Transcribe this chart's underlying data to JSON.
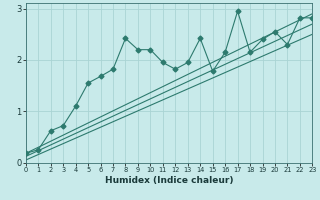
{
  "xlabel": "Humidex (Indice chaleur)",
  "ylabel": "",
  "background_color": "#c8eaea",
  "line_color": "#2d7a6e",
  "grid_color": "#aad4d4",
  "x_data": [
    0,
    1,
    2,
    3,
    4,
    5,
    6,
    7,
    8,
    9,
    10,
    11,
    12,
    13,
    14,
    15,
    16,
    17,
    18,
    19,
    20,
    21,
    22,
    23
  ],
  "y_data": [
    0.18,
    0.25,
    0.62,
    0.72,
    1.1,
    1.55,
    1.68,
    1.82,
    2.42,
    2.2,
    2.2,
    1.95,
    1.82,
    1.95,
    2.42,
    1.78,
    2.15,
    2.95,
    2.15,
    2.4,
    2.55,
    2.3,
    2.82,
    2.82
  ],
  "reg_lines": [
    {
      "x": [
        0,
        23
      ],
      "y": [
        0.18,
        2.9
      ]
    },
    {
      "x": [
        0,
        23
      ],
      "y": [
        0.12,
        2.7
      ]
    },
    {
      "x": [
        0,
        23
      ],
      "y": [
        0.05,
        2.5
      ]
    }
  ],
  "xlim": [
    0,
    23
  ],
  "ylim": [
    0,
    3.1
  ],
  "xticks": [
    0,
    1,
    2,
    3,
    4,
    5,
    6,
    7,
    8,
    9,
    10,
    11,
    12,
    13,
    14,
    15,
    16,
    17,
    18,
    19,
    20,
    21,
    22,
    23
  ],
  "yticks": [
    0,
    1,
    2,
    3
  ],
  "figsize": [
    3.2,
    2.0
  ],
  "dpi": 100
}
